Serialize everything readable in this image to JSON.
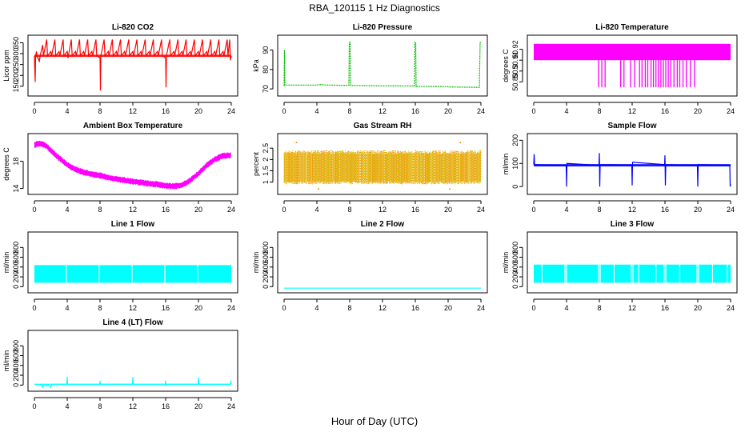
{
  "figure": {
    "title": "RBA_120115  1 Hz Diagnostics",
    "xlabel": "Hour of Day (UTC)"
  },
  "chart_data": [
    {
      "type": "line",
      "title": "Li-820 CO2",
      "ylabel": "Licor ppm",
      "color": "#ff0000",
      "xlim": [
        0,
        24
      ],
      "ylim": [
        120,
        370
      ],
      "xticks": [
        0,
        4,
        8,
        12,
        16,
        20,
        24
      ],
      "yticks": [
        150,
        200,
        250,
        300,
        350
      ],
      "band": {
        "center": 290,
        "half": 5
      },
      "series": [
        {
          "values": [
            [
              0,
              290
            ],
            [
              0.1,
              170
            ],
            [
              0.15,
              290
            ],
            [
              0.25,
              310
            ],
            [
              0.3,
              290
            ],
            [
              0.6,
              265
            ],
            [
              0.7,
              290
            ],
            [
              1,
              340
            ],
            [
              1.1,
              290
            ],
            [
              1.5,
              365
            ],
            [
              1.6,
              290
            ],
            [
              2,
              310
            ],
            [
              2.1,
              290
            ],
            [
              2.5,
              365
            ],
            [
              2.6,
              290
            ],
            [
              3,
              310
            ],
            [
              3.1,
              290
            ],
            [
              3.5,
              365
            ],
            [
              3.6,
              290
            ],
            [
              4,
              310
            ],
            [
              4.1,
              280
            ],
            [
              4.5,
              365
            ],
            [
              4.6,
              290
            ],
            [
              5,
              310
            ],
            [
              5.1,
              290
            ],
            [
              5.5,
              365
            ],
            [
              5.6,
              290
            ],
            [
              6,
              310
            ],
            [
              6.1,
              290
            ],
            [
              6.5,
              365
            ],
            [
              6.6,
              290
            ],
            [
              7,
              310
            ],
            [
              7.1,
              290
            ],
            [
              7.5,
              365
            ],
            [
              7.6,
              290
            ],
            [
              8,
              280
            ],
            [
              8.05,
              130
            ],
            [
              8.1,
              290
            ],
            [
              8.5,
              365
            ],
            [
              8.6,
              290
            ],
            [
              9,
              310
            ],
            [
              9.1,
              290
            ],
            [
              9.5,
              365
            ],
            [
              9.6,
              290
            ],
            [
              10,
              310
            ],
            [
              10.1,
              290
            ],
            [
              10.5,
              365
            ],
            [
              10.6,
              290
            ],
            [
              11,
              310
            ],
            [
              11.1,
              290
            ],
            [
              11.5,
              365
            ],
            [
              11.6,
              290
            ],
            [
              12,
              310
            ],
            [
              12.1,
              290
            ],
            [
              12.5,
              365
            ],
            [
              12.6,
              290
            ],
            [
              13,
              310
            ],
            [
              13.1,
              290
            ],
            [
              13.5,
              365
            ],
            [
              13.6,
              290
            ],
            [
              14,
              310
            ],
            [
              14.1,
              290
            ],
            [
              14.5,
              365
            ],
            [
              14.6,
              290
            ],
            [
              15,
              310
            ],
            [
              15.1,
              290
            ],
            [
              15.5,
              365
            ],
            [
              15.6,
              290
            ],
            [
              16,
              280
            ],
            [
              16.05,
              145
            ],
            [
              16.1,
              290
            ],
            [
              16.5,
              365
            ],
            [
              16.6,
              290
            ],
            [
              17,
              310
            ],
            [
              17.1,
              290
            ],
            [
              17.5,
              365
            ],
            [
              17.6,
              290
            ],
            [
              18,
              310
            ],
            [
              18.1,
              290
            ],
            [
              18.5,
              365
            ],
            [
              18.6,
              290
            ],
            [
              19,
              310
            ],
            [
              19.1,
              290
            ],
            [
              19.5,
              365
            ],
            [
              19.6,
              290
            ],
            [
              20,
              310
            ],
            [
              20.1,
              290
            ],
            [
              20.5,
              365
            ],
            [
              20.6,
              290
            ],
            [
              21,
              310
            ],
            [
              21.1,
              290
            ],
            [
              21.5,
              365
            ],
            [
              21.6,
              290
            ],
            [
              22,
              310
            ],
            [
              22.1,
              290
            ],
            [
              22.5,
              365
            ],
            [
              22.6,
              290
            ],
            [
              23,
              310
            ],
            [
              23.1,
              290
            ],
            [
              23.5,
              365
            ],
            [
              23.6,
              290
            ],
            [
              23.8,
              365
            ],
            [
              23.9,
              270
            ],
            [
              24,
              290
            ]
          ]
        }
      ]
    },
    {
      "type": "line",
      "title": "Li-820 Pressure",
      "ylabel": "kPa",
      "color": "#00bb00",
      "dashed": true,
      "xlim": [
        0,
        24
      ],
      "ylim": [
        68,
        96
      ],
      "xticks": [
        0,
        4,
        8,
        12,
        16,
        20,
        24
      ],
      "yticks": [
        70,
        80,
        90
      ],
      "series": [
        {
          "values": [
            [
              0,
              71.5
            ],
            [
              0.05,
              90
            ],
            [
              0.1,
              72
            ],
            [
              0.5,
              72
            ],
            [
              4,
              72
            ],
            [
              4.5,
              72.3
            ],
            [
              5,
              72
            ],
            [
              7.9,
              71.8
            ],
            [
              7.95,
              94
            ],
            [
              8.05,
              94
            ],
            [
              8.1,
              71.8
            ],
            [
              12,
              71.6
            ],
            [
              15.9,
              71.5
            ],
            [
              15.95,
              94
            ],
            [
              16.05,
              94
            ],
            [
              16.1,
              71.3
            ],
            [
              19.9,
              71.2
            ],
            [
              20,
              71
            ],
            [
              23.8,
              70.8
            ],
            [
              23.9,
              94
            ],
            [
              24,
              94
            ]
          ]
        }
      ]
    },
    {
      "type": "area",
      "title": "Li-820 Temperature",
      "ylabel": "degrees C",
      "color": "#ff00ff",
      "xlim": [
        0,
        24
      ],
      "ylim": [
        50.88,
        50.93
      ],
      "xticks": [
        0,
        4,
        8,
        12,
        16,
        20,
        24
      ],
      "yticks": [
        50.89,
        50.9,
        50.91,
        50.92
      ],
      "band": {
        "low": 50.91,
        "high": 50.925,
        "x0": 0,
        "x1": 24
      },
      "drops": [
        7.9,
        8.3,
        8.7,
        10.6,
        11.0,
        11.8,
        12.3,
        12.9,
        13.2,
        13.6,
        13.9,
        14.3,
        14.6,
        14.9,
        15.2,
        15.5,
        15.8,
        16.1,
        16.4,
        16.7,
        17.1,
        17.5,
        17.8,
        18.2,
        18.6,
        19.1,
        19.6
      ],
      "drop_to": 50.885
    },
    {
      "type": "line",
      "title": "Ambient Box Temperature",
      "ylabel": "degrees C",
      "color": "#ff00ff",
      "xlim": [
        0,
        24
      ],
      "ylim": [
        13.6,
        21.6
      ],
      "xticks": [
        0,
        4,
        8,
        12,
        16,
        20,
        24
      ],
      "yticks": [
        14,
        18
      ],
      "noise": 0.5,
      "series": [
        {
          "values": [
            [
              0,
              20.4
            ],
            [
              0.5,
              20.6
            ],
            [
              1,
              20.5
            ],
            [
              1.5,
              20.2
            ],
            [
              2,
              19.6
            ],
            [
              3,
              18.5
            ],
            [
              4,
              17.5
            ],
            [
              5,
              16.8
            ],
            [
              6,
              16.4
            ],
            [
              7,
              16.1
            ],
            [
              8,
              15.9
            ],
            [
              9,
              15.6
            ],
            [
              10,
              15.4
            ],
            [
              11,
              15.2
            ],
            [
              12,
              15.0
            ],
            [
              13,
              14.9
            ],
            [
              14,
              14.7
            ],
            [
              15,
              14.6
            ],
            [
              16,
              14.4
            ],
            [
              17,
              14.3
            ],
            [
              18,
              14.5
            ],
            [
              19,
              15.2
            ],
            [
              20,
              16.2
            ],
            [
              21,
              17.4
            ],
            [
              22,
              18.3
            ],
            [
              23,
              18.8
            ],
            [
              24,
              18.9
            ]
          ]
        }
      ]
    },
    {
      "type": "scatter",
      "title": "Gas Stream RH",
      "ylabel": "percent",
      "color": "#ff8c00",
      "color2": "#c8c800",
      "xlim": [
        0,
        24
      ],
      "ylim": [
        0.6,
        3.0
      ],
      "xticks": [
        0,
        4,
        8,
        12,
        16,
        20,
        24
      ],
      "yticks": [
        1.0,
        1.5,
        2.0,
        2.5
      ],
      "range": {
        "low": 0.9,
        "high": 2.4,
        "outlier_low": 0.7,
        "outlier_high": 2.75
      }
    },
    {
      "type": "line",
      "title": "Sample Flow",
      "ylabel": "ml/min",
      "color": "#0000ff",
      "xlim": [
        0,
        24
      ],
      "ylim": [
        -20,
        215
      ],
      "xticks": [
        0,
        4,
        8,
        12,
        16,
        20,
        24
      ],
      "yticks": [
        0,
        100,
        200
      ],
      "band": {
        "center": 92,
        "half": 5
      },
      "series": [
        {
          "values": [
            [
              0,
              95
            ],
            [
              0.05,
              140
            ],
            [
              0.1,
              95
            ],
            [
              3.95,
              90
            ],
            [
              4,
              0
            ],
            [
              4.05,
              100
            ],
            [
              7.95,
              92
            ],
            [
              8,
              145
            ],
            [
              8.05,
              0
            ],
            [
              8.1,
              95
            ],
            [
              11.95,
              93
            ],
            [
              12,
              5
            ],
            [
              12.05,
              105
            ],
            [
              15.95,
              95
            ],
            [
              16,
              135
            ],
            [
              16.05,
              5
            ],
            [
              16.1,
              95
            ],
            [
              19.95,
              92
            ],
            [
              20,
              0
            ],
            [
              20.05,
              95
            ],
            [
              23.9,
              92
            ],
            [
              23.95,
              0
            ],
            [
              24,
              10
            ]
          ]
        }
      ]
    },
    {
      "type": "area",
      "title": "Line 1 Flow",
      "ylabel": "ml/min",
      "color": "#00ffff",
      "xlim": [
        0,
        24
      ],
      "ylim": [
        -60,
        1050
      ],
      "xticks": [
        0,
        4,
        8,
        12,
        16,
        20,
        24
      ],
      "yticks": [
        0,
        200,
        400,
        600,
        800
      ],
      "band": {
        "low": 80,
        "high": 440,
        "x0": 0,
        "x1": 24
      },
      "gaps": [
        3.9,
        7.9,
        11.9,
        15.9,
        19.9
      ]
    },
    {
      "type": "line",
      "title": "Line 2 Flow",
      "ylabel": "ml/min",
      "color": "#00ffff",
      "xlim": [
        0,
        24
      ],
      "ylim": [
        -60,
        1050
      ],
      "xticks": [
        0,
        4,
        8,
        12,
        16,
        20,
        24
      ],
      "yticks": [
        0,
        200,
        400,
        600,
        800
      ],
      "series": [
        {
          "values": [
            [
              0,
              -30
            ],
            [
              24,
              -30
            ]
          ]
        }
      ]
    },
    {
      "type": "area",
      "title": "Line 3 Flow",
      "ylabel": "ml/min",
      "color": "#00ffff",
      "xlim": [
        0,
        24
      ],
      "ylim": [
        -60,
        1050
      ],
      "xticks": [
        0,
        4,
        8,
        12,
        16,
        20,
        24
      ],
      "yticks": [
        0,
        200,
        400,
        600,
        800
      ],
      "band": {
        "low": 80,
        "high": 450,
        "x0": 0,
        "x1": 24
      },
      "gaps": [
        1.0,
        3.8,
        4.0,
        7.9,
        8.1,
        9.8,
        11.9,
        12.1,
        12.8,
        14.9,
        15.9,
        16.1,
        17.8,
        19.9,
        20.1,
        21.8,
        23.6
      ]
    },
    {
      "type": "line",
      "title": "Line 4 (LT) Flow",
      "ylabel": "ml/min",
      "color": "#00ffff",
      "xlim": [
        0,
        24
      ],
      "ylim": [
        -60,
        1050
      ],
      "xticks": [
        0,
        4,
        8,
        12,
        16,
        20,
        24
      ],
      "yticks": [
        0,
        200,
        400,
        600,
        800
      ],
      "band": {
        "center": 15,
        "half": 12
      },
      "series": [
        {
          "values": [
            [
              0,
              15
            ],
            [
              0.7,
              10
            ],
            [
              1,
              -40
            ],
            [
              1.1,
              15
            ],
            [
              1.5,
              -20
            ],
            [
              1.6,
              15
            ],
            [
              2,
              -50
            ],
            [
              2.1,
              15
            ],
            [
              3.95,
              20
            ],
            [
              4,
              170
            ],
            [
              4.05,
              15
            ],
            [
              7.95,
              15
            ],
            [
              8,
              80
            ],
            [
              8.05,
              15
            ],
            [
              11.95,
              20
            ],
            [
              12,
              165
            ],
            [
              12.05,
              15
            ],
            [
              15.95,
              15
            ],
            [
              16,
              90
            ],
            [
              16.05,
              -20
            ],
            [
              16.1,
              15
            ],
            [
              19.95,
              20
            ],
            [
              20,
              160
            ],
            [
              20.05,
              15
            ],
            [
              23.9,
              15
            ],
            [
              23.95,
              90
            ],
            [
              24,
              20
            ]
          ]
        }
      ]
    }
  ]
}
